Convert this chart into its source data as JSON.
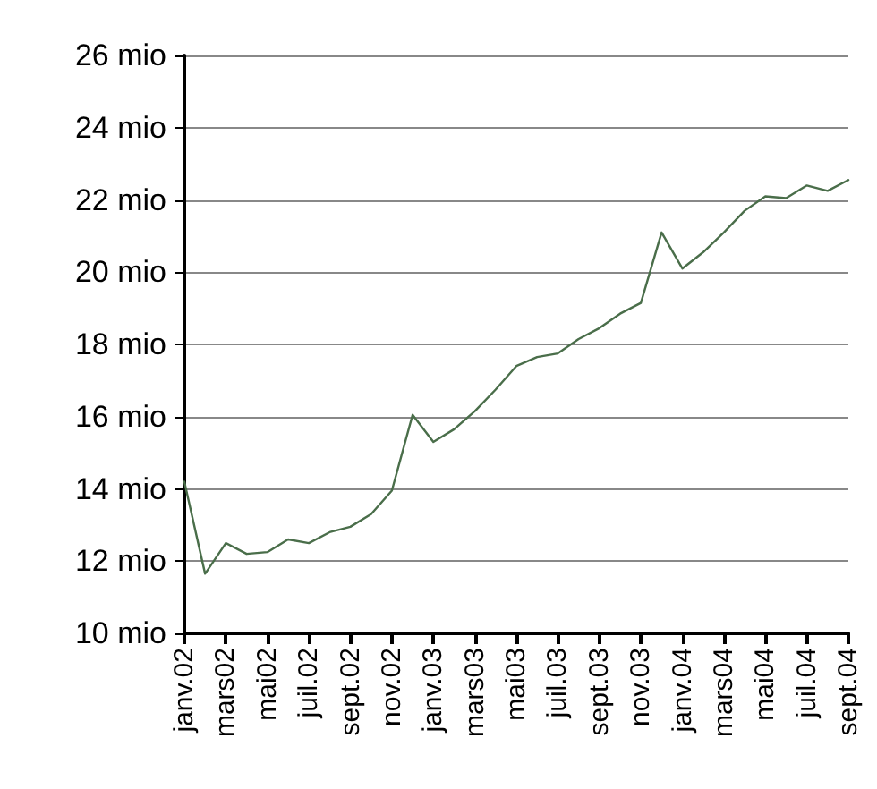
{
  "chart_data": {
    "type": "line",
    "categories": [
      "janv.02",
      null,
      "mars02",
      null,
      "mai02",
      null,
      "juil.02",
      null,
      "sept.02",
      null,
      "nov.02",
      null,
      "janv.03",
      null,
      "mars03",
      null,
      "mai03",
      null,
      "juil.03",
      null,
      "sept.03",
      null,
      "nov.03",
      null,
      "janv.04",
      null,
      "mars04",
      null,
      "mai04",
      null,
      "juil.04",
      null,
      "sept.04"
    ],
    "series": [
      {
        "color": "#4a6e4a",
        "values": [
          14.2,
          11.65,
          12.5,
          12.2,
          12.25,
          12.6,
          12.5,
          12.8,
          12.95,
          13.3,
          13.95,
          16.05,
          15.3,
          15.65,
          16.15,
          16.75,
          17.4,
          17.65,
          17.75,
          18.15,
          18.45,
          18.85,
          19.15,
          21.1,
          20.1,
          20.55,
          21.1,
          21.7,
          22.1,
          22.05,
          22.4,
          22.25,
          22.55
        ]
      }
    ],
    "ylim": [
      10,
      26
    ],
    "yticks": [
      {
        "value": 10,
        "label": "10 mio"
      },
      {
        "value": 12,
        "label": "12 mio"
      },
      {
        "value": 14,
        "label": "14 mio"
      },
      {
        "value": 16,
        "label": "16 mio"
      },
      {
        "value": 18,
        "label": "18 mio"
      },
      {
        "value": 20,
        "label": "20 mio"
      },
      {
        "value": 22,
        "label": "22 mio"
      },
      {
        "value": 24,
        "label": "24 mio"
      },
      {
        "value": 26,
        "label": "26 mio"
      }
    ],
    "grid": "y",
    "marker": "none",
    "line_style": "solid"
  }
}
